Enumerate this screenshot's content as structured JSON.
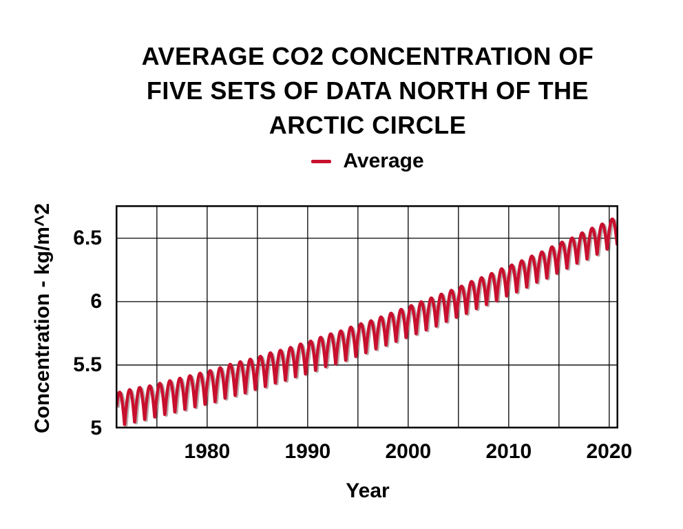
{
  "title": {
    "lines": [
      "AVERAGE CO2 CONCENTRATION OF",
      "FIVE SETS OF DATA NORTH OF THE",
      "ARCTIC CIRCLE"
    ]
  },
  "legend": {
    "label": "Average",
    "swatch_color": "#C8102E"
  },
  "chart_data": {
    "type": "line",
    "title": "AVERAGE CO2 CONCENTRATION OF FIVE SETS OF DATA NORTH OF THE ARCTIC CIRCLE",
    "xlabel": "Year",
    "ylabel": "Concentration - kg/m^2",
    "xlim": [
      1970.9,
      2020.9
    ],
    "ylim": [
      5.0,
      6.76
    ],
    "grid": true,
    "legend_position": "top",
    "line_color": "#C8102E",
    "shadow_color": "rgba(95,70,70,0.45)",
    "grid_color": "#000000",
    "x_grid_step_years": 5,
    "x_ticks": [
      {
        "value": 1980,
        "label": "1980"
      },
      {
        "value": 1990,
        "label": "1990"
      },
      {
        "value": 2000,
        "label": "2000"
      },
      {
        "value": 2010,
        "label": "2010"
      },
      {
        "value": 2020,
        "label": "2020"
      }
    ],
    "y_ticks": [
      {
        "value": 5,
        "label": "5"
      },
      {
        "value": 5.5,
        "label": "5.5"
      },
      {
        "value": 6,
        "label": "6"
      },
      {
        "value": 6.5,
        "label": "6.5"
      }
    ],
    "series": [
      {
        "name": "Average",
        "seasonal_model": {
          "peak_month_fraction": 0.29,
          "sharpness_power": 0.45,
          "samples_per_year": 36,
          "start_year": 1971.0,
          "end_year": 2020.9
        },
        "annual_peak_trough": [
          [
            1971,
            5.28,
            5.0
          ],
          [
            1972,
            5.3,
            5.02
          ],
          [
            1973,
            5.32,
            5.04
          ],
          [
            1974,
            5.33,
            5.06
          ],
          [
            1975,
            5.35,
            5.08
          ],
          [
            1976,
            5.37,
            5.1
          ],
          [
            1977,
            5.39,
            5.12
          ],
          [
            1978,
            5.41,
            5.14
          ],
          [
            1979,
            5.43,
            5.16
          ],
          [
            1980,
            5.45,
            5.18
          ],
          [
            1981,
            5.47,
            5.2
          ],
          [
            1982,
            5.5,
            5.23
          ],
          [
            1983,
            5.52,
            5.25
          ],
          [
            1984,
            5.54,
            5.27
          ],
          [
            1985,
            5.56,
            5.3
          ],
          [
            1986,
            5.59,
            5.32
          ],
          [
            1987,
            5.61,
            5.35
          ],
          [
            1988,
            5.63,
            5.37
          ],
          [
            1989,
            5.66,
            5.4
          ],
          [
            1990,
            5.68,
            5.42
          ],
          [
            1991,
            5.71,
            5.45
          ],
          [
            1992,
            5.74,
            5.48
          ],
          [
            1993,
            5.76,
            5.5
          ],
          [
            1994,
            5.79,
            5.53
          ],
          [
            1995,
            5.82,
            5.56
          ],
          [
            1996,
            5.84,
            5.59
          ],
          [
            1997,
            5.87,
            5.62
          ],
          [
            1998,
            5.9,
            5.65
          ],
          [
            1999,
            5.93,
            5.68
          ],
          [
            2000,
            5.96,
            5.71
          ],
          [
            2001,
            5.99,
            5.74
          ],
          [
            2002,
            6.02,
            5.77
          ],
          [
            2003,
            6.05,
            5.8
          ],
          [
            2004,
            6.08,
            5.84
          ],
          [
            2005,
            6.11,
            5.87
          ],
          [
            2006,
            6.15,
            5.9
          ],
          [
            2007,
            6.18,
            5.94
          ],
          [
            2008,
            6.21,
            5.97
          ],
          [
            2009,
            6.25,
            6.0
          ],
          [
            2010,
            6.28,
            6.04
          ],
          [
            2011,
            6.31,
            6.07
          ],
          [
            2012,
            6.35,
            6.11
          ],
          [
            2013,
            6.38,
            6.15
          ],
          [
            2014,
            6.42,
            6.18
          ],
          [
            2015,
            6.46,
            6.22
          ],
          [
            2016,
            6.49,
            6.26
          ],
          [
            2017,
            6.53,
            6.3
          ],
          [
            2018,
            6.57,
            6.33
          ],
          [
            2019,
            6.6,
            6.37
          ],
          [
            2020,
            6.64,
            6.41
          ],
          [
            2021,
            6.68,
            6.45
          ]
        ]
      }
    ]
  }
}
